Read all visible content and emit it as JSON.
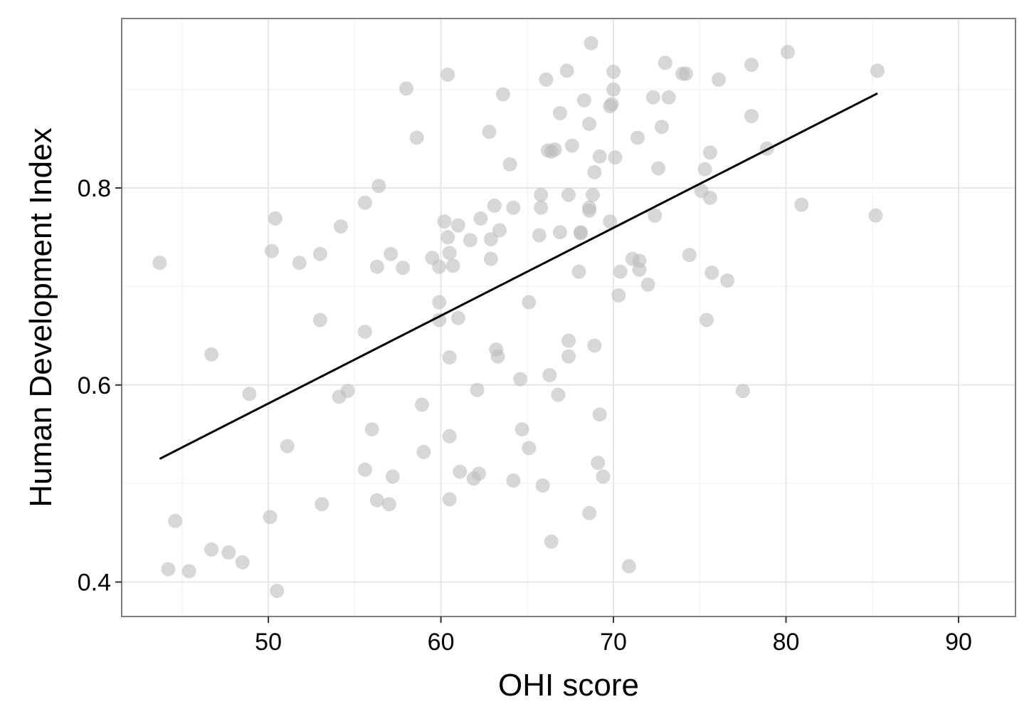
{
  "chart_data": {
    "type": "scatter",
    "title": "",
    "xlabel": "OHI score",
    "ylabel": "Human Development Index",
    "xlim": [
      41.5,
      93.3
    ],
    "ylim": [
      0.365,
      0.972
    ],
    "x_ticks": [
      50,
      60,
      70,
      80,
      90
    ],
    "x_tick_labels": [
      "50",
      "60",
      "70",
      "80",
      "90"
    ],
    "y_ticks": [
      0.4,
      0.6,
      0.8
    ],
    "y_tick_labels": [
      "0.4",
      "0.6",
      "0.8"
    ],
    "x_minor_ticks": [
      45,
      55,
      65,
      75,
      85
    ],
    "y_minor_ticks": [
      0.5,
      0.7,
      0.9
    ],
    "grid": true,
    "legend": "none",
    "point_color": "#bdbdbd",
    "line_color": "#000000",
    "fit_line": {
      "x": [
        43.7,
        85.3
      ],
      "y": [
        0.525,
        0.896
      ]
    },
    "points": [
      [
        68.7,
        0.947
      ],
      [
        80.1,
        0.938
      ],
      [
        73.0,
        0.927
      ],
      [
        78.0,
        0.925
      ],
      [
        67.3,
        0.919
      ],
      [
        70.0,
        0.918
      ],
      [
        74.0,
        0.916
      ],
      [
        74.2,
        0.916
      ],
      [
        60.4,
        0.915
      ],
      [
        85.3,
        0.919
      ],
      [
        66.1,
        0.91
      ],
      [
        76.1,
        0.91
      ],
      [
        58.0,
        0.901
      ],
      [
        70.0,
        0.9
      ],
      [
        63.6,
        0.895
      ],
      [
        72.3,
        0.892
      ],
      [
        73.2,
        0.892
      ],
      [
        68.3,
        0.889
      ],
      [
        69.8,
        0.883
      ],
      [
        69.9,
        0.885
      ],
      [
        66.9,
        0.876
      ],
      [
        78.0,
        0.873
      ],
      [
        68.6,
        0.865
      ],
      [
        72.8,
        0.862
      ],
      [
        62.8,
        0.857
      ],
      [
        58.6,
        0.851
      ],
      [
        71.4,
        0.851
      ],
      [
        67.6,
        0.843
      ],
      [
        78.9,
        0.84
      ],
      [
        66.2,
        0.838
      ],
      [
        66.6,
        0.839
      ],
      [
        66.4,
        0.837
      ],
      [
        75.6,
        0.836
      ],
      [
        69.2,
        0.832
      ],
      [
        70.1,
        0.831
      ],
      [
        64.0,
        0.824
      ],
      [
        72.6,
        0.82
      ],
      [
        75.3,
        0.819
      ],
      [
        68.9,
        0.816
      ],
      [
        56.4,
        0.802
      ],
      [
        75.1,
        0.797
      ],
      [
        65.8,
        0.793
      ],
      [
        67.4,
        0.793
      ],
      [
        68.8,
        0.793
      ],
      [
        75.6,
        0.79
      ],
      [
        55.6,
        0.785
      ],
      [
        80.9,
        0.783
      ],
      [
        63.1,
        0.782
      ],
      [
        64.2,
        0.78
      ],
      [
        65.8,
        0.78
      ],
      [
        68.6,
        0.78
      ],
      [
        68.6,
        0.777
      ],
      [
        50.4,
        0.769
      ],
      [
        62.3,
        0.769
      ],
      [
        72.4,
        0.772
      ],
      [
        85.2,
        0.772
      ],
      [
        60.2,
        0.766
      ],
      [
        69.8,
        0.766
      ],
      [
        54.2,
        0.761
      ],
      [
        61.0,
        0.762
      ],
      [
        63.4,
        0.757
      ],
      [
        66.9,
        0.755
      ],
      [
        68.1,
        0.755
      ],
      [
        68.1,
        0.754
      ],
      [
        65.7,
        0.752
      ],
      [
        60.4,
        0.75
      ],
      [
        61.7,
        0.747
      ],
      [
        62.9,
        0.748
      ],
      [
        50.2,
        0.736
      ],
      [
        53.0,
        0.733
      ],
      [
        57.1,
        0.733
      ],
      [
        60.5,
        0.734
      ],
      [
        74.4,
        0.732
      ],
      [
        59.5,
        0.729
      ],
      [
        62.9,
        0.728
      ],
      [
        71.1,
        0.728
      ],
      [
        71.5,
        0.726
      ],
      [
        43.7,
        0.724
      ],
      [
        51.8,
        0.724
      ],
      [
        56.3,
        0.72
      ],
      [
        57.8,
        0.719
      ],
      [
        59.9,
        0.72
      ],
      [
        60.7,
        0.721
      ],
      [
        68.0,
        0.715
      ],
      [
        70.4,
        0.715
      ],
      [
        71.5,
        0.717
      ],
      [
        75.7,
        0.714
      ],
      [
        76.6,
        0.706
      ],
      [
        72.0,
        0.702
      ],
      [
        70.3,
        0.691
      ],
      [
        59.9,
        0.684
      ],
      [
        65.1,
        0.684
      ],
      [
        53.0,
        0.666
      ],
      [
        59.9,
        0.666
      ],
      [
        61.0,
        0.668
      ],
      [
        75.4,
        0.666
      ],
      [
        55.6,
        0.654
      ],
      [
        67.4,
        0.645
      ],
      [
        68.9,
        0.64
      ],
      [
        63.2,
        0.636
      ],
      [
        46.7,
        0.631
      ],
      [
        63.3,
        0.629
      ],
      [
        60.5,
        0.628
      ],
      [
        67.4,
        0.629
      ],
      [
        66.3,
        0.61
      ],
      [
        64.6,
        0.606
      ],
      [
        62.1,
        0.595
      ],
      [
        48.9,
        0.591
      ],
      [
        54.6,
        0.594
      ],
      [
        54.1,
        0.588
      ],
      [
        66.8,
        0.59
      ],
      [
        77.5,
        0.594
      ],
      [
        58.9,
        0.58
      ],
      [
        69.2,
        0.57
      ],
      [
        56.0,
        0.555
      ],
      [
        64.7,
        0.555
      ],
      [
        60.5,
        0.548
      ],
      [
        51.1,
        0.538
      ],
      [
        65.1,
        0.536
      ],
      [
        59.0,
        0.532
      ],
      [
        69.1,
        0.521
      ],
      [
        55.6,
        0.514
      ],
      [
        61.1,
        0.512
      ],
      [
        62.2,
        0.51
      ],
      [
        57.2,
        0.507
      ],
      [
        61.9,
        0.505
      ],
      [
        69.4,
        0.507
      ],
      [
        64.2,
        0.503
      ],
      [
        65.9,
        0.498
      ],
      [
        56.3,
        0.483
      ],
      [
        60.5,
        0.484
      ],
      [
        53.1,
        0.479
      ],
      [
        57.0,
        0.479
      ],
      [
        68.6,
        0.47
      ],
      [
        50.1,
        0.466
      ],
      [
        44.6,
        0.462
      ],
      [
        66.4,
        0.441
      ],
      [
        46.7,
        0.433
      ],
      [
        47.7,
        0.43
      ],
      [
        48.5,
        0.42
      ],
      [
        70.9,
        0.416
      ],
      [
        44.2,
        0.413
      ],
      [
        45.4,
        0.411
      ],
      [
        50.5,
        0.391
      ]
    ]
  }
}
